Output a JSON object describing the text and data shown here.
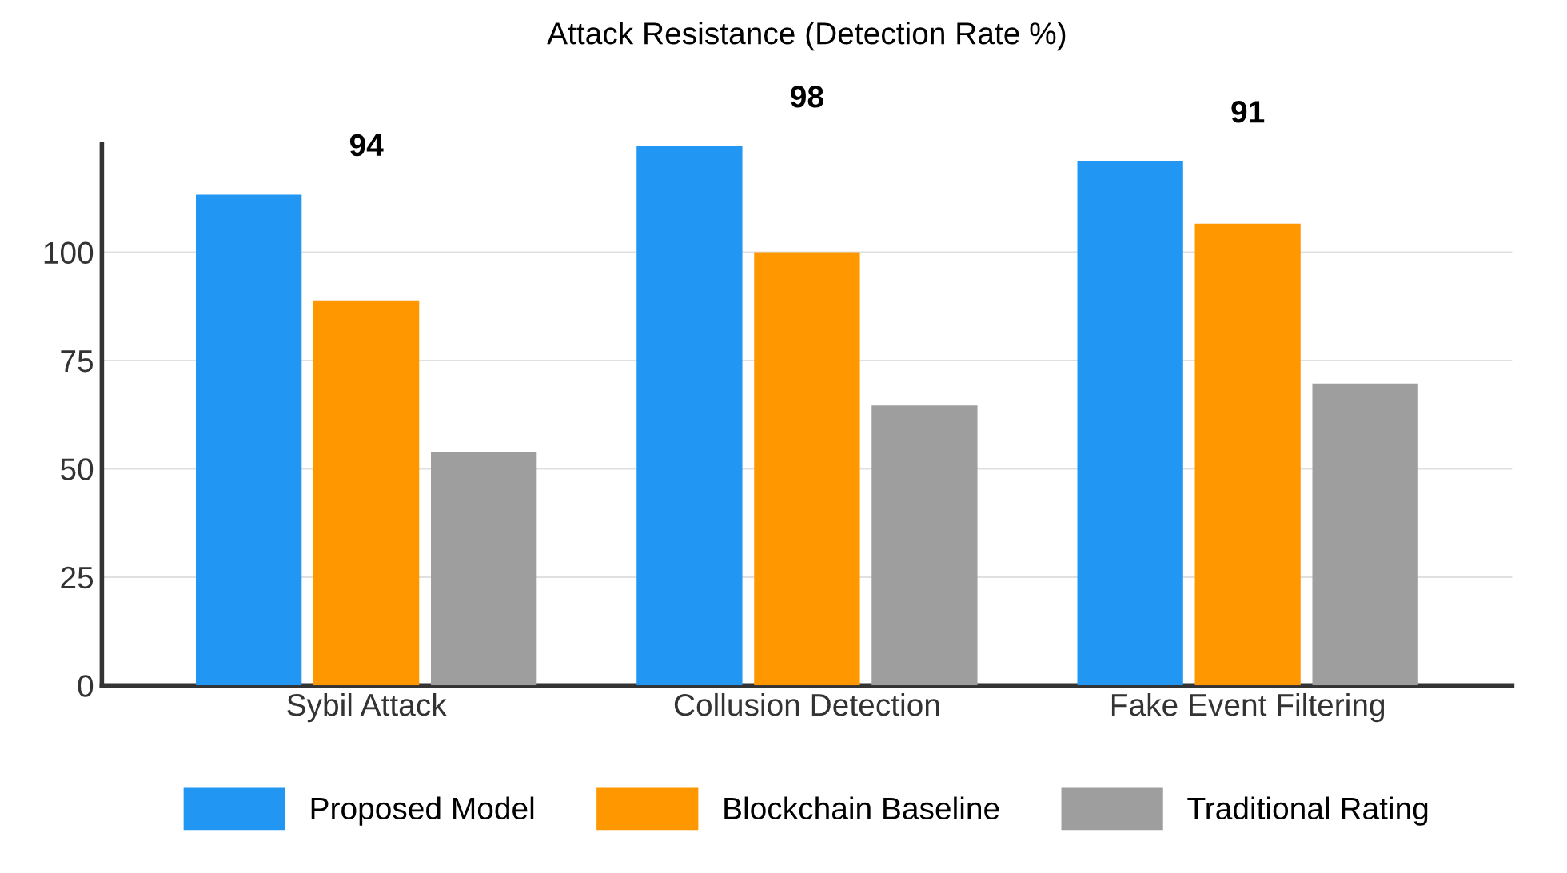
{
  "chart_data": {
    "type": "bar",
    "title": "Attack Resistance (Detection Rate %)",
    "categories": [
      "Sybil Attack",
      "Collusion Detection",
      "Fake Event Filtering"
    ],
    "series": [
      {
        "name": "Proposed Model",
        "color": "#2196f3",
        "values": [
          113.3,
          124.5,
          121
        ]
      },
      {
        "name": "Blockchain Baseline",
        "color": "#ff9800",
        "values": [
          88.9,
          100,
          106.6
        ]
      },
      {
        "name": "Traditional Rating",
        "color": "#9e9e9e",
        "values": [
          53.9,
          64.6,
          69.7
        ]
      }
    ],
    "annotations": [
      "94",
      "98",
      "91"
    ],
    "ylim": [
      0,
      125
    ],
    "yticks": [
      0,
      25,
      50,
      75,
      100
    ],
    "grid": "y",
    "legend": "bottom"
  }
}
